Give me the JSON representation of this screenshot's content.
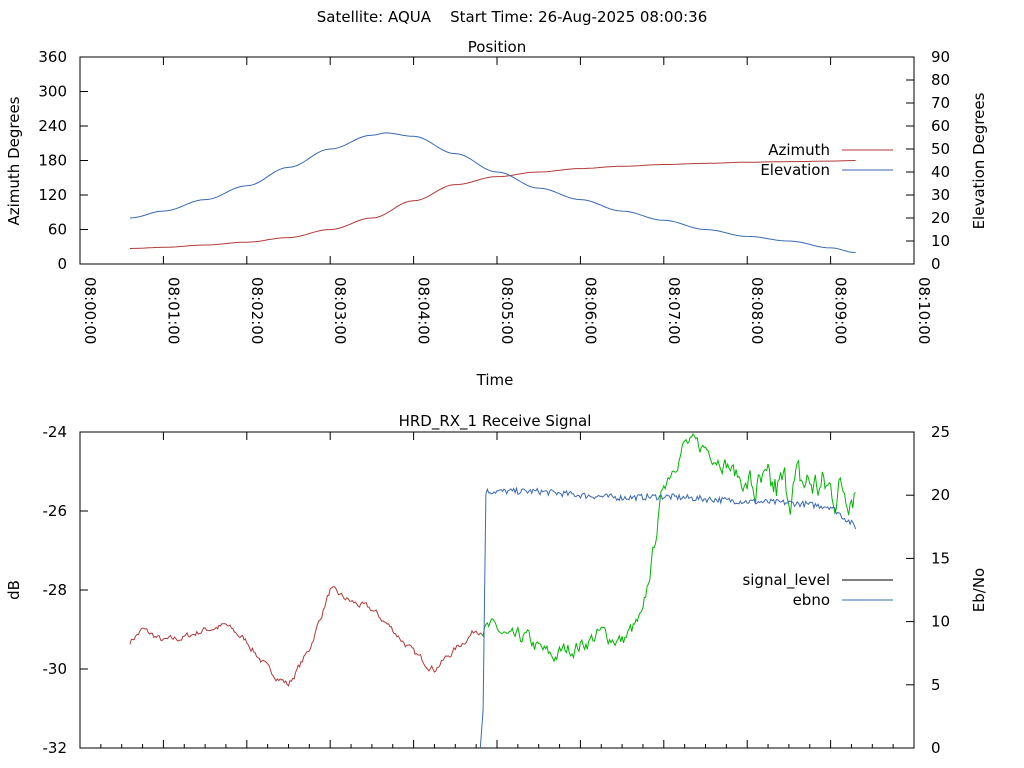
{
  "header": {
    "title": "Satellite: AQUA    Start Time: 26-Aug-2025 08:00:36"
  },
  "colors": {
    "azimuth": "#b03a3a",
    "elevation": "#3a6ab0",
    "signal_low": "#b03a3a",
    "signal_high": "#00b400",
    "ebno": "#3a6ab0",
    "signal_legend": "#000000"
  },
  "chart_data": [
    {
      "type": "line",
      "title": "Position",
      "xlabel": "Time",
      "ylabel": "Azimuth Degrees",
      "y2label": "Elevation Degrees",
      "xlim": [
        "08:00:00",
        "08:10:00"
      ],
      "xticks": [
        "08:00:00",
        "08:01:00",
        "08:02:00",
        "08:03:00",
        "08:04:00",
        "08:05:00",
        "08:06:00",
        "08:07:00",
        "08:08:00",
        "08:09:00",
        "08:10:00"
      ],
      "ylim": [
        0,
        360
      ],
      "yticks": [
        0,
        60,
        120,
        180,
        240,
        300,
        360
      ],
      "y2lim": [
        0,
        90
      ],
      "y2ticks": [
        0,
        10,
        20,
        30,
        40,
        50,
        60,
        70,
        80,
        90
      ],
      "legend_position": "right",
      "series": [
        {
          "name": "Azimuth",
          "axis": "y",
          "x": [
            "08:00:36",
            "08:01:00",
            "08:01:30",
            "08:02:00",
            "08:02:30",
            "08:03:00",
            "08:03:30",
            "08:04:00",
            "08:04:30",
            "08:05:00",
            "08:05:30",
            "08:06:00",
            "08:06:30",
            "08:07:00",
            "08:07:30",
            "08:08:00",
            "08:08:30",
            "08:09:00",
            "08:09:18"
          ],
          "values": [
            27,
            29,
            33,
            38,
            46,
            60,
            80,
            110,
            138,
            152,
            160,
            166,
            170,
            173,
            175,
            177,
            178,
            179,
            180
          ]
        },
        {
          "name": "Elevation",
          "axis": "y2",
          "x": [
            "08:00:36",
            "08:01:00",
            "08:01:30",
            "08:02:00",
            "08:02:30",
            "08:03:00",
            "08:03:30",
            "08:03:40",
            "08:04:00",
            "08:04:30",
            "08:05:00",
            "08:05:30",
            "08:06:00",
            "08:06:30",
            "08:07:00",
            "08:07:30",
            "08:08:00",
            "08:08:30",
            "08:09:00",
            "08:09:18"
          ],
          "values": [
            20,
            23,
            28,
            34,
            42,
            50,
            56,
            57,
            55.5,
            48,
            40,
            33,
            28,
            23,
            19,
            15,
            12,
            10,
            7,
            5
          ]
        }
      ]
    },
    {
      "type": "line",
      "title": "HRD_RX_1 Receive Signal",
      "ylabel": "dB",
      "y2label": "Eb/No",
      "xlim": [
        "08:00:00",
        "08:10:00"
      ],
      "ylim": [
        -32,
        -24
      ],
      "yticks": [
        -32,
        -30,
        -28,
        -26,
        -24
      ],
      "y2lim": [
        0,
        25
      ],
      "y2ticks": [
        0,
        5,
        10,
        15,
        20,
        25
      ],
      "legend_position": "right",
      "series": [
        {
          "name": "signal_level",
          "axis": "y",
          "x": [
            "08:00:36",
            "08:00:45",
            "08:01:00",
            "08:01:15",
            "08:01:30",
            "08:01:45",
            "08:02:00",
            "08:02:15",
            "08:02:30",
            "08:02:45",
            "08:03:00",
            "08:03:15",
            "08:03:30",
            "08:03:45",
            "08:04:00",
            "08:04:15",
            "08:04:30",
            "08:04:45",
            "08:05:00",
            "08:05:10",
            "08:05:20",
            "08:05:30",
            "08:05:40",
            "08:05:50",
            "08:06:00",
            "08:06:15",
            "08:06:30",
            "08:06:45",
            "08:07:00",
            "08:07:15",
            "08:07:30",
            "08:07:45",
            "08:08:00",
            "08:08:15",
            "08:08:30",
            "08:08:45",
            "08:09:00",
            "08:09:10",
            "08:09:18"
          ],
          "values": [
            -29.3,
            -29.0,
            -29.3,
            -29.2,
            -29.0,
            -28.9,
            -29.3,
            -30.0,
            -30.4,
            -29.5,
            -28.0,
            -28.3,
            -28.5,
            -29.0,
            -29.6,
            -30.0,
            -29.5,
            -29.0,
            -29.0,
            -29.3,
            -29.2,
            -29.5,
            -29.7,
            -29.5,
            -29.4,
            -29.1,
            -29.3,
            -28.7,
            -25.3,
            -24.3,
            -24.4,
            -24.8,
            -25.4,
            -25.6,
            -25.4,
            -25.3,
            -25.5,
            -25.4,
            -25.3
          ]
        },
        {
          "name": "ebno",
          "axis": "y2",
          "x": [
            "08:04:48",
            "08:04:50",
            "08:04:52",
            "08:05:00",
            "08:05:30",
            "08:06:00",
            "08:06:30",
            "08:07:00",
            "08:07:30",
            "08:08:00",
            "08:08:30",
            "08:09:00",
            "08:09:18"
          ],
          "values": [
            0,
            3,
            20.3,
            20.3,
            20.3,
            20.0,
            19.8,
            19.9,
            19.7,
            19.5,
            19.4,
            19.1,
            17.5
          ]
        }
      ]
    }
  ]
}
